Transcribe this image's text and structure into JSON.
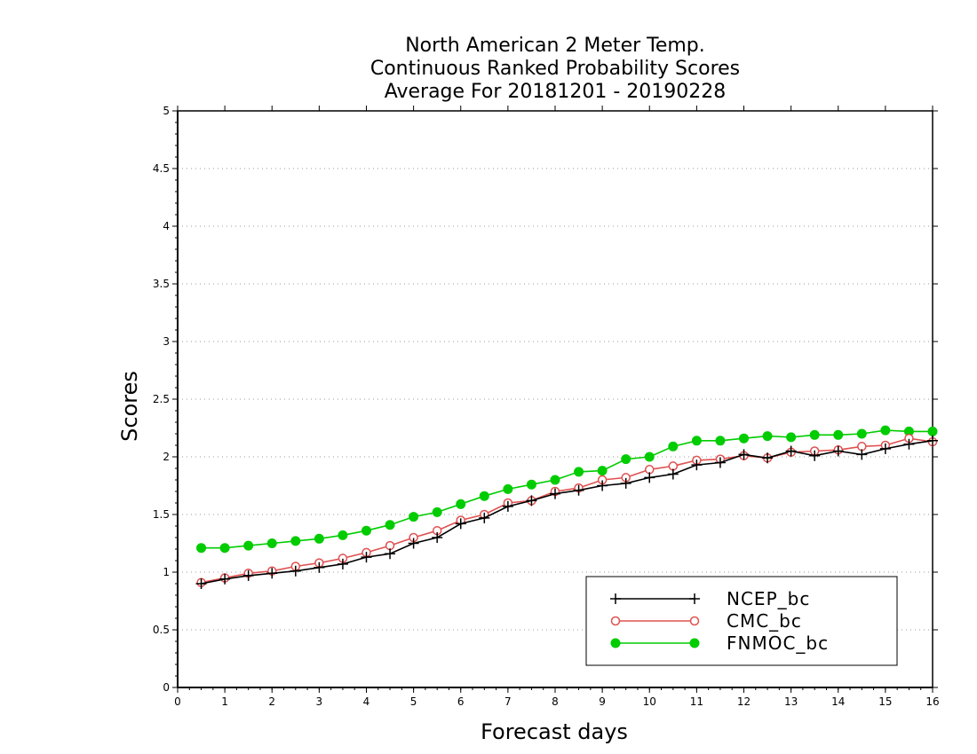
{
  "chart_data": {
    "type": "line",
    "title": [
      "North American 2 Meter Temp.",
      "Continuous Ranked Probability Scores",
      "Average For 20181201 - 20190228"
    ],
    "xlabel": "Forecast days",
    "ylabel": "Scores",
    "xlim": [
      0,
      16
    ],
    "ylim": [
      0,
      5
    ],
    "xticks": [
      0,
      1,
      2,
      3,
      4,
      5,
      6,
      7,
      8,
      9,
      10,
      11,
      12,
      13,
      14,
      15,
      16
    ],
    "xtick_labels": [
      "0",
      "1",
      "2",
      "3",
      "4",
      "5",
      "6",
      "7",
      "8",
      "9",
      "10",
      "11",
      "12",
      "13",
      "14",
      "15",
      "16"
    ],
    "yticks": [
      0,
      0.5,
      1,
      1.5,
      2,
      2.5,
      3,
      3.5,
      4,
      4.5,
      5
    ],
    "ytick_labels": [
      "0",
      "0.5",
      "1",
      "1.5",
      "2",
      "2.5",
      "3",
      "3.5",
      "4",
      "4.5",
      "5"
    ],
    "grid": "horizontal dotted",
    "legend_position": "bottom-right",
    "x": [
      0.5,
      1.0,
      1.5,
      2.0,
      2.5,
      3.0,
      3.5,
      4.0,
      4.5,
      5.0,
      5.5,
      6.0,
      6.5,
      7.0,
      7.5,
      8.0,
      8.5,
      9.0,
      9.5,
      10.0,
      10.5,
      11.0,
      11.5,
      12.0,
      12.5,
      13.0,
      13.5,
      14.0,
      14.5,
      15.0,
      15.5,
      16.0
    ],
    "series": [
      {
        "name": "NCEP_bc",
        "color": "#000000",
        "marker": "plus",
        "values": [
          0.9,
          0.94,
          0.97,
          0.99,
          1.01,
          1.04,
          1.07,
          1.13,
          1.16,
          1.25,
          1.3,
          1.42,
          1.47,
          1.57,
          1.62,
          1.68,
          1.71,
          1.75,
          1.77,
          1.82,
          1.85,
          1.93,
          1.95,
          2.02,
          1.99,
          2.05,
          2.01,
          2.05,
          2.02,
          2.07,
          2.11,
          2.14
        ]
      },
      {
        "name": "CMC_bc",
        "color": "#e05050",
        "marker": "open-circle",
        "values": [
          0.91,
          0.95,
          0.99,
          1.01,
          1.05,
          1.08,
          1.12,
          1.17,
          1.23,
          1.3,
          1.36,
          1.45,
          1.5,
          1.6,
          1.62,
          1.7,
          1.73,
          1.8,
          1.82,
          1.89,
          1.92,
          1.97,
          1.98,
          2.01,
          1.99,
          2.04,
          2.05,
          2.06,
          2.09,
          2.1,
          2.16,
          2.13
        ]
      },
      {
        "name": "FNMOC_bc",
        "color": "#00cc00",
        "marker": "filled-circle",
        "values": [
          1.21,
          1.21,
          1.23,
          1.25,
          1.27,
          1.29,
          1.32,
          1.36,
          1.41,
          1.48,
          1.52,
          1.59,
          1.66,
          1.72,
          1.76,
          1.8,
          1.87,
          1.88,
          1.98,
          2.0,
          2.09,
          2.14,
          2.14,
          2.16,
          2.18,
          2.17,
          2.19,
          2.19,
          2.2,
          2.23,
          2.22,
          2.22
        ]
      }
    ]
  }
}
